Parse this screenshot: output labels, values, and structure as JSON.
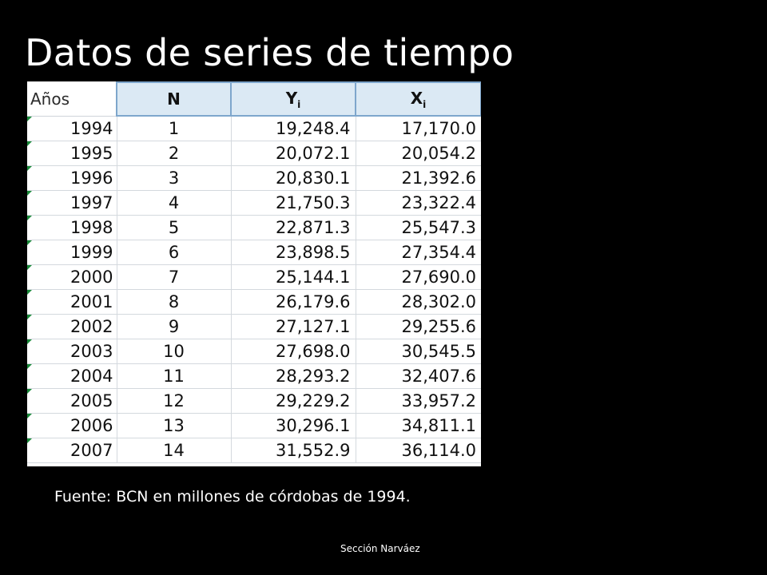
{
  "slide": {
    "title": "Datos de series de tiempo",
    "source": "Fuente: BCN en  millones de córdobas de 1994.",
    "footer": "Sección Narváez"
  },
  "table": {
    "headers": {
      "year": "Años",
      "n": "N",
      "y_base": "Y",
      "y_sub": "i",
      "x_base": "X",
      "x_sub": "i"
    },
    "rows": [
      {
        "year": "1994",
        "n": "1",
        "y": "19,248.4",
        "x": "17,170.0"
      },
      {
        "year": "1995",
        "n": "2",
        "y": "20,072.1",
        "x": "20,054.2"
      },
      {
        "year": "1996",
        "n": "3",
        "y": "20,830.1",
        "x": "21,392.6"
      },
      {
        "year": "1997",
        "n": "4",
        "y": "21,750.3",
        "x": "23,322.4"
      },
      {
        "year": "1998",
        "n": "5",
        "y": "22,871.3",
        "x": "25,547.3"
      },
      {
        "year": "1999",
        "n": "6",
        "y": "23,898.5",
        "x": "27,354.4"
      },
      {
        "year": "2000",
        "n": "7",
        "y": "25,144.1",
        "x": "27,690.0"
      },
      {
        "year": "2001",
        "n": "8",
        "y": "26,179.6",
        "x": "28,302.0"
      },
      {
        "year": "2002",
        "n": "9",
        "y": "27,127.1",
        "x": "29,255.6"
      },
      {
        "year": "2003",
        "n": "10",
        "y": "27,698.0",
        "x": "30,545.5"
      },
      {
        "year": "2004",
        "n": "11",
        "y": "28,293.2",
        "x": "32,407.6"
      },
      {
        "year": "2005",
        "n": "12",
        "y": "29,229.2",
        "x": "33,957.2"
      },
      {
        "year": "2006",
        "n": "13",
        "y": "30,296.1",
        "x": "34,811.1"
      },
      {
        "year": "2007",
        "n": "14",
        "y": "31,552.9",
        "x": "36,114.0"
      }
    ]
  },
  "colors": {
    "background": "#000000",
    "header_fill": "#dbe9f4",
    "header_border": "#7ea6cc",
    "error_flag": "#1a8a3a"
  }
}
